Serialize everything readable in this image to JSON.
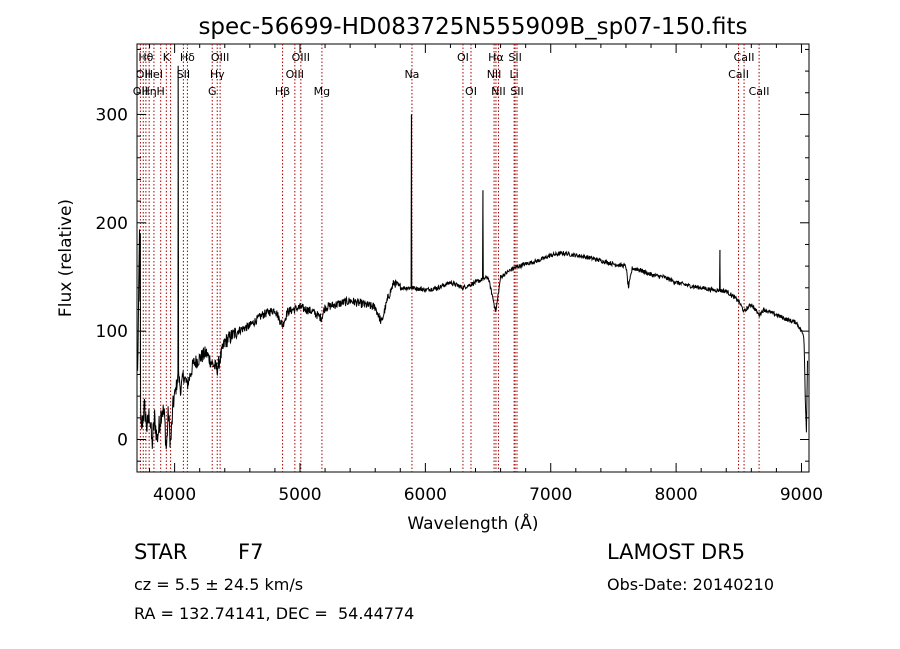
{
  "chart_data": {
    "type": "line",
    "title": "spec-56699-HD083725N555909B_sp07-150.fits",
    "xlabel": "Wavelength (Å)",
    "ylabel": "Flux (relative)",
    "xlim": [
      3700,
      9060
    ],
    "ylim": [
      -30,
      365
    ],
    "xticks": [
      4000,
      5000,
      6000,
      7000,
      8000,
      9000
    ],
    "yticks": [
      0,
      100,
      200,
      300
    ],
    "grid": false,
    "line_color": "#000000",
    "marker_color": "#aa0000",
    "spectrum_keypoints": [
      [
        3705,
        60
      ],
      [
        3720,
        190
      ],
      [
        3730,
        5
      ],
      [
        3740,
        15
      ],
      [
        3760,
        30
      ],
      [
        3780,
        10
      ],
      [
        3800,
        25
      ],
      [
        3820,
        -5
      ],
      [
        3840,
        20
      ],
      [
        3860,
        0
      ],
      [
        3880,
        15
      ],
      [
        3900,
        30
      ],
      [
        3920,
        20
      ],
      [
        3934,
        -10
      ],
      [
        3950,
        25
      ],
      [
        3968,
        -5
      ],
      [
        3990,
        35
      ],
      [
        4000,
        40
      ],
      [
        4030,
        60
      ],
      [
        4050,
        45
      ],
      [
        4070,
        60
      ],
      [
        4100,
        50
      ],
      [
        4150,
        70
      ],
      [
        4200,
        75
      ],
      [
        4250,
        80
      ],
      [
        4300,
        70
      ],
      [
        4340,
        65
      ],
      [
        4400,
        90
      ],
      [
        4500,
        100
      ],
      [
        4600,
        105
      ],
      [
        4700,
        115
      ],
      [
        4800,
        120
      ],
      [
        4861,
        105
      ],
      [
        4900,
        118
      ],
      [
        5000,
        122
      ],
      [
        5100,
        118
      ],
      [
        5172,
        112
      ],
      [
        5200,
        122
      ],
      [
        5300,
        125
      ],
      [
        5400,
        128
      ],
      [
        5500,
        125
      ],
      [
        5600,
        122
      ],
      [
        5650,
        108
      ],
      [
        5700,
        130
      ],
      [
        5750,
        145
      ],
      [
        5800,
        140
      ],
      [
        5900,
        140
      ],
      [
        6000,
        138
      ],
      [
        6100,
        140
      ],
      [
        6200,
        145
      ],
      [
        6300,
        140
      ],
      [
        6400,
        145
      ],
      [
        6500,
        150
      ],
      [
        6563,
        118
      ],
      [
        6600,
        150
      ],
      [
        6700,
        158
      ],
      [
        6800,
        162
      ],
      [
        6900,
        165
      ],
      [
        7000,
        170
      ],
      [
        7100,
        172
      ],
      [
        7200,
        170
      ],
      [
        7300,
        168
      ],
      [
        7400,
        165
      ],
      [
        7500,
        162
      ],
      [
        7600,
        160
      ],
      [
        7620,
        140
      ],
      [
        7650,
        158
      ],
      [
        7700,
        157
      ],
      [
        7800,
        152
      ],
      [
        7900,
        150
      ],
      [
        8000,
        145
      ],
      [
        8100,
        142
      ],
      [
        8200,
        140
      ],
      [
        8300,
        138
      ],
      [
        8400,
        137
      ],
      [
        8498,
        128
      ],
      [
        8542,
        118
      ],
      [
        8600,
        125
      ],
      [
        8662,
        115
      ],
      [
        8700,
        120
      ],
      [
        8800,
        115
      ],
      [
        8900,
        110
      ],
      [
        8960,
        108
      ],
      [
        9000,
        100
      ],
      [
        9020,
        95
      ],
      [
        9030,
        40
      ],
      [
        9040,
        5
      ],
      [
        9050,
        90
      ]
    ],
    "spectrum_spikes": [
      [
        4028,
        345
      ],
      [
        5890,
        300
      ],
      [
        6460,
        230
      ],
      [
        8350,
        175
      ],
      [
        3727,
        190
      ]
    ],
    "line_markers": [
      {
        "wavelength": 3727,
        "label": "OII",
        "row": 2
      },
      {
        "wavelength": 3750,
        "label": "OII",
        "row": 1
      },
      {
        "wavelength": 3771,
        "label": "Hθ",
        "row": 0
      },
      {
        "wavelength": 3797,
        "label": "Hη",
        "row": 2
      },
      {
        "wavelength": 3835,
        "label": "HeI",
        "row": 1
      },
      {
        "wavelength": 3889,
        "label": "H",
        "row": 2
      },
      {
        "wavelength": 3934,
        "label": "K",
        "row": 0
      },
      {
        "wavelength": 3968,
        "label": "",
        "row": 0
      },
      {
        "wavelength": 4070,
        "label": "SII",
        "row": 1
      },
      {
        "wavelength": 4102,
        "label": "Hδ",
        "row": 0
      },
      {
        "wavelength": 4300,
        "label": "G",
        "row": 2
      },
      {
        "wavelength": 4340,
        "label": "Hγ",
        "row": 1
      },
      {
        "wavelength": 4363,
        "label": "OIII",
        "row": 0
      },
      {
        "wavelength": 4861,
        "label": "Hβ",
        "row": 2
      },
      {
        "wavelength": 4959,
        "label": "OIII",
        "row": 1
      },
      {
        "wavelength": 5007,
        "label": "OIII",
        "row": 0
      },
      {
        "wavelength": 5175,
        "label": "Mg",
        "row": 2
      },
      {
        "wavelength": 5893,
        "label": "Na",
        "row": 1
      },
      {
        "wavelength": 6300,
        "label": "OI",
        "row": 0
      },
      {
        "wavelength": 6364,
        "label": "OI",
        "row": 2
      },
      {
        "wavelength": 6548,
        "label": "NII",
        "row": 1
      },
      {
        "wavelength": 6563,
        "label": "Hα",
        "row": 0
      },
      {
        "wavelength": 6583,
        "label": "NII",
        "row": 2
      },
      {
        "wavelength": 6708,
        "label": "Li",
        "row": 1
      },
      {
        "wavelength": 6716,
        "label": "SII",
        "row": 0
      },
      {
        "wavelength": 6731,
        "label": "SII",
        "row": 2
      },
      {
        "wavelength": 8498,
        "label": "CaII",
        "row": 1
      },
      {
        "wavelength": 8542,
        "label": "CaII",
        "row": 0
      },
      {
        "wavelength": 8662,
        "label": "CaII",
        "row": 2
      }
    ]
  },
  "info": {
    "class_type": "STAR",
    "subclass": "F7",
    "cz": "cz = 5.5 ± 24.5 km/s",
    "radec": "RA = 132.74141, DEC =  54.44774",
    "survey": "LAMOST DR5",
    "obs_date": "Obs-Date: 20140210"
  }
}
